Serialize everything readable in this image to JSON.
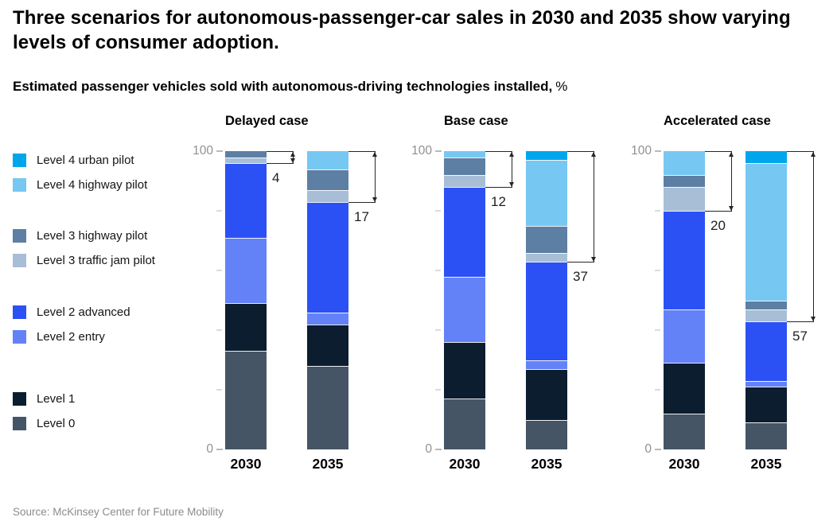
{
  "title": "Three scenarios for autonomous-passenger-car sales in 2030 and 2035 show varying levels of consumer adoption.",
  "subtitle": "Estimated passenger vehicles sold with autonomous-driving technologies installed,",
  "subtitle_unit": "%",
  "source": "Source: McKinsey Center for Future Mobility",
  "colors": {
    "level4_urban": "#00A6EC",
    "level4_highway": "#76C8F2",
    "level3_highway": "#5C7FA3",
    "level3_traffic_jam": "#A7BED6",
    "level2_advanced": "#2B51F5",
    "level2_entry": "#6482F7",
    "level1": "#0B1D2E",
    "level0": "#455565",
    "bracket_line": "#262626",
    "axis_label": "#919191",
    "tick_major": "#b9b9b9",
    "tick_minor": "#dcdcdc",
    "source_text": "#8c8c8c"
  },
  "legend": {
    "groups": [
      [
        {
          "label": "Level 4 urban pilot",
          "key": "level4_urban"
        },
        {
          "label": "Level 4 highway pilot",
          "key": "level4_highway"
        }
      ],
      [
        {
          "label": "Level 3 highway pilot",
          "key": "level3_highway"
        },
        {
          "label": "Level 3 traffic jam pilot",
          "key": "level3_traffic_jam"
        }
      ],
      [
        {
          "label": "Level 2 advanced",
          "key": "level2_advanced"
        },
        {
          "label": "Level 2 entry",
          "key": "level2_entry"
        }
      ],
      [
        {
          "label": "Level 1",
          "key": "level1"
        },
        {
          "label": "Level 0",
          "key": "level0"
        }
      ]
    ]
  },
  "chart_data": {
    "type": "bar",
    "stacked": true,
    "unit": "%",
    "ylim": [
      0,
      100
    ],
    "y_axis": {
      "top_label": "100",
      "bottom_label": "0"
    },
    "y_ticks_labeled": [
      0,
      100
    ],
    "y_ticks_minor": [
      20,
      40,
      60,
      80
    ],
    "categories": [
      "2030",
      "2035"
    ],
    "segments_top_to_bottom": [
      "level4_urban",
      "level4_highway",
      "level3_highway",
      "level3_traffic_jam",
      "level2_advanced",
      "level2_entry",
      "level1",
      "level0"
    ],
    "groups": [
      {
        "title": "Delayed case",
        "bars": [
          {
            "category": "2030",
            "values": {
              "level4_urban": 0,
              "level4_highway": 0,
              "level3_highway": 2,
              "level3_traffic_jam": 2,
              "level2_advanced": 25,
              "level2_entry": 22,
              "level1": 16,
              "level0": 33
            },
            "bracket": {
              "label": "4",
              "span_pct": 4
            }
          },
          {
            "category": "2035",
            "values": {
              "level4_urban": 0,
              "level4_highway": 6,
              "level3_highway": 7,
              "level3_traffic_jam": 4,
              "level2_advanced": 37,
              "level2_entry": 4,
              "level1": 14,
              "level0": 28
            },
            "bracket": {
              "label": "17",
              "span_pct": 17
            }
          }
        ]
      },
      {
        "title": "Base case",
        "bars": [
          {
            "category": "2030",
            "values": {
              "level4_urban": 0,
              "level4_highway": 2,
              "level3_highway": 6,
              "level3_traffic_jam": 4,
              "level2_advanced": 30,
              "level2_entry": 22,
              "level1": 19,
              "level0": 17
            },
            "bracket": {
              "label": "12",
              "span_pct": 12
            }
          },
          {
            "category": "2035",
            "values": {
              "level4_urban": 3,
              "level4_highway": 22,
              "level3_highway": 9,
              "level3_traffic_jam": 3,
              "level2_advanced": 33,
              "level2_entry": 3,
              "level1": 17,
              "level0": 10
            },
            "bracket": {
              "label": "37",
              "span_pct": 37
            }
          }
        ]
      },
      {
        "title": "Accelerated case",
        "bars": [
          {
            "category": "2030",
            "values": {
              "level4_urban": 0,
              "level4_highway": 8,
              "level3_highway": 4,
              "level3_traffic_jam": 8,
              "level2_advanced": 33,
              "level2_entry": 18,
              "level1": 17,
              "level0": 12
            },
            "bracket": {
              "label": "20",
              "span_pct": 20
            }
          },
          {
            "category": "2035",
            "values": {
              "level4_urban": 4,
              "level4_highway": 46,
              "level3_highway": 3,
              "level3_traffic_jam": 4,
              "level2_advanced": 20,
              "level2_entry": 2,
              "level1": 12,
              "level0": 9
            },
            "bracket": {
              "label": "57",
              "span_pct": 57
            }
          }
        ]
      }
    ]
  }
}
